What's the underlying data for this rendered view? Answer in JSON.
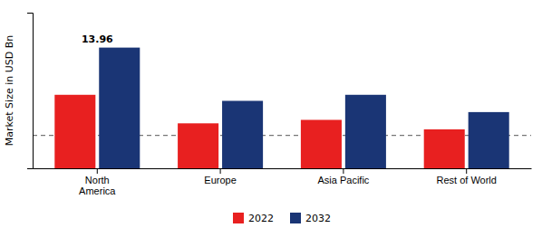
{
  "chart_data": {
    "type": "bar",
    "categories": [
      "North\nAmerica",
      "Europe",
      "Asia Pacific",
      "Rest of World"
    ],
    "series": [
      {
        "name": "2022",
        "color": "#e82020",
        "values": [
          8.5,
          5.2,
          5.6,
          4.5
        ]
      },
      {
        "name": "2032",
        "color": "#1a3575",
        "values": [
          13.96,
          7.8,
          8.5,
          6.5
        ]
      }
    ],
    "ylabel": "Market Size in USD Bn",
    "ylim": [
      0,
      18
    ],
    "yticks": [],
    "tick_labels": "x",
    "grid": false,
    "legend": "bottom",
    "annotations": [
      {
        "text": "13.96",
        "x": "North\nAmerica",
        "y": 13.96
      }
    ],
    "hlines": [
      {
        "value": 3.8,
        "line_style": "dashed",
        "color": "#555555"
      }
    ]
  }
}
